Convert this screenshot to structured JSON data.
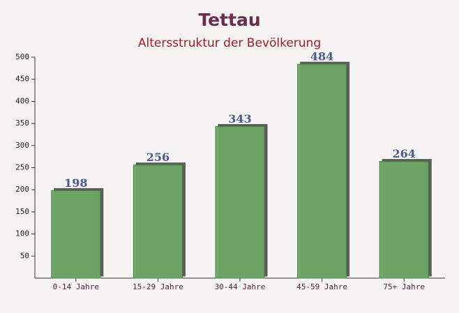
{
  "chart_data": {
    "type": "bar",
    "title": "Tettau",
    "subtitle": "Altersstruktur der Bevölkerung",
    "categories": [
      "0-14 Jahre",
      "15-29 Jahre",
      "30-44 Jahre",
      "45-59 Jahre",
      "75+ Jahre"
    ],
    "values": [
      198,
      256,
      343,
      484,
      264
    ],
    "color": "#6aa562",
    "ylim": [
      0,
      500
    ],
    "yticks": [
      50,
      100,
      150,
      200,
      250,
      300,
      350,
      400,
      450,
      500
    ],
    "grid": false
  }
}
